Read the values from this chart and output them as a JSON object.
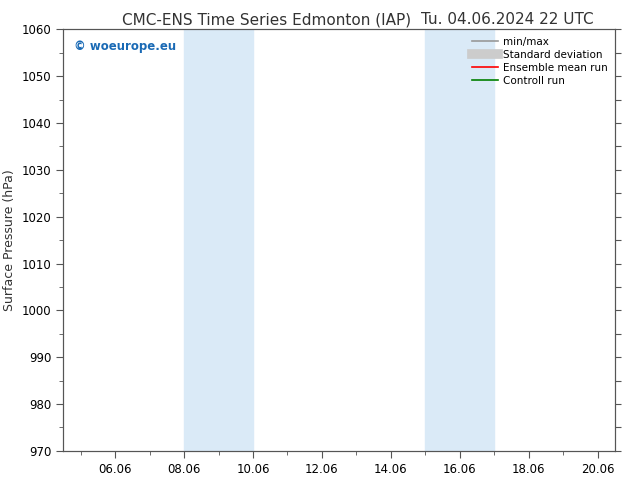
{
  "title_left": "CMC-ENS Time Series Edmonton (IAP)",
  "title_right": "Tu. 04.06.2024 22 UTC",
  "ylabel": "Surface Pressure (hPa)",
  "ylim": [
    970,
    1060
  ],
  "yticks": [
    970,
    980,
    990,
    1000,
    1010,
    1020,
    1030,
    1040,
    1050,
    1060
  ],
  "xlim_start": 4.5,
  "xlim_end": 20.5,
  "xtick_labels": [
    "06.06",
    "08.06",
    "10.06",
    "12.06",
    "14.06",
    "16.06",
    "18.06",
    "20.06"
  ],
  "xtick_positions": [
    6,
    8,
    10,
    12,
    14,
    16,
    18,
    20
  ],
  "shaded_bands": [
    {
      "xstart": 8,
      "xend": 10,
      "color": "#daeaf7"
    },
    {
      "xstart": 15,
      "xend": 17,
      "color": "#daeaf7"
    }
  ],
  "watermark": "© woeurope.eu",
  "watermark_color": "#1a6ab5",
  "legend_items": [
    {
      "label": "min/max",
      "color": "#999999",
      "lw": 1.2
    },
    {
      "label": "Standard deviation",
      "color": "#cccccc",
      "lw": 7
    },
    {
      "label": "Ensemble mean run",
      "color": "#ff0000",
      "lw": 1.2
    },
    {
      "label": "Controll run",
      "color": "#008000",
      "lw": 1.2
    }
  ],
  "bg_color": "#ffffff",
  "title_fontsize": 11,
  "tick_fontsize": 8.5,
  "ylabel_fontsize": 9
}
